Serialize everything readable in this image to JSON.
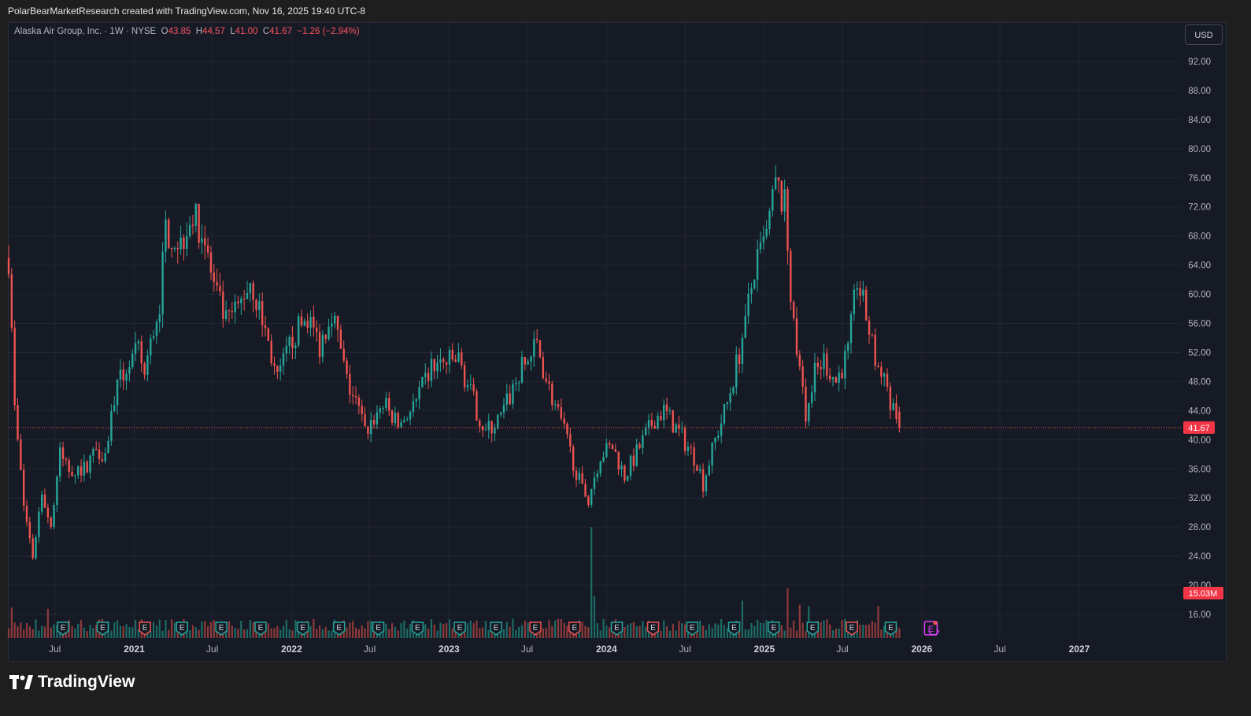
{
  "header": {
    "attribution": "PolarBearMarketResearch created with TradingView.com, Nov 16, 2025 19:40 UTC-8"
  },
  "legend": {
    "symbol": "Alaska Air Group, Inc. · 1W · NYSE",
    "o_label": "O",
    "o_value": "43.85",
    "h_label": "H",
    "h_value": "44.57",
    "l_label": "L",
    "l_value": "41.00",
    "c_label": "C",
    "c_value": "41.67",
    "change": "−1.26 (−2.94%)"
  },
  "currency_button": "USD",
  "price_badge": "41.67",
  "volume_badge": "15.03M",
  "brand": "TradingView",
  "colors": {
    "up": "#26a69a",
    "down": "#ef5350",
    "background": "#161a25",
    "grid": "#232733",
    "earnings_accent": "#e040fb"
  },
  "chart_data": {
    "type": "candlestick",
    "symbol": "ALK",
    "interval": "1W",
    "y_ticks": [
      "16.00",
      "20.00",
      "24.00",
      "28.00",
      "32.00",
      "36.00",
      "40.00",
      "44.00",
      "48.00",
      "52.00",
      "56.00",
      "60.00",
      "64.00",
      "68.00",
      "72.00",
      "76.00",
      "80.00",
      "84.00",
      "88.00",
      "92.00"
    ],
    "ylim": [
      13,
      96
    ],
    "x_ticks": [
      "Jul",
      "2021",
      "Jul",
      "2022",
      "Jul",
      "2023",
      "Jul",
      "2024",
      "Jul",
      "2025",
      "Jul",
      "2026",
      "Jul",
      "2027"
    ],
    "x_range": [
      "2020-03-16",
      "2027-07-01"
    ],
    "last_close": 41.67,
    "last_volume": "15.03M",
    "earnings_markers": [
      {
        "date": "2020-07-20",
        "t": "up"
      },
      {
        "date": "2020-10-20",
        "t": "up"
      },
      {
        "date": "2021-01-26",
        "t": "down"
      },
      {
        "date": "2021-04-22",
        "t": "up"
      },
      {
        "date": "2021-07-22",
        "t": "up"
      },
      {
        "date": "2021-10-21",
        "t": "up"
      },
      {
        "date": "2022-01-27",
        "t": "up"
      },
      {
        "date": "2022-04-21",
        "t": "up"
      },
      {
        "date": "2022-07-21",
        "t": "up"
      },
      {
        "date": "2022-10-20",
        "t": "up"
      },
      {
        "date": "2023-01-26",
        "t": "up"
      },
      {
        "date": "2023-04-20",
        "t": "up"
      },
      {
        "date": "2023-07-20",
        "t": "down"
      },
      {
        "date": "2023-10-19",
        "t": "down"
      },
      {
        "date": "2024-01-25",
        "t": "up"
      },
      {
        "date": "2024-04-18",
        "t": "down"
      },
      {
        "date": "2024-07-18",
        "t": "up"
      },
      {
        "date": "2024-10-23",
        "t": "up"
      },
      {
        "date": "2025-01-23",
        "t": "up"
      },
      {
        "date": "2025-04-23",
        "t": "up"
      },
      {
        "date": "2025-07-23",
        "t": "down"
      },
      {
        "date": "2025-10-21",
        "t": "up"
      }
    ],
    "future_earnings_date": "2026-01-22",
    "anchors": [
      [
        "2020-03-16",
        65
      ],
      [
        "2020-03-30",
        44
      ],
      [
        "2020-04-20",
        31
      ],
      [
        "2020-05-11",
        24
      ],
      [
        "2020-06-01",
        33
      ],
      [
        "2020-06-22",
        28
      ],
      [
        "2020-07-13",
        38
      ],
      [
        "2020-08-03",
        36
      ],
      [
        "2020-09-07",
        36
      ],
      [
        "2020-10-05",
        39
      ],
      [
        "2020-10-26",
        38
      ],
      [
        "2020-11-16",
        46
      ],
      [
        "2020-12-14",
        50
      ],
      [
        "2021-01-11",
        52
      ],
      [
        "2021-01-25",
        49
      ],
      [
        "2021-03-01",
        59
      ],
      [
        "2021-03-15",
        69
      ],
      [
        "2021-04-19",
        67
      ],
      [
        "2021-05-10",
        71
      ],
      [
        "2021-06-07",
        69
      ],
      [
        "2021-07-05",
        61
      ],
      [
        "2021-08-02",
        56
      ],
      [
        "2021-08-30",
        58
      ],
      [
        "2021-09-27",
        62
      ],
      [
        "2021-11-01",
        55
      ],
      [
        "2021-11-29",
        48
      ],
      [
        "2022-01-03",
        54
      ],
      [
        "2022-02-07",
        57
      ],
      [
        "2022-03-07",
        53
      ],
      [
        "2022-04-04",
        58
      ],
      [
        "2022-05-09",
        48
      ],
      [
        "2022-06-06",
        44
      ],
      [
        "2022-06-20",
        41
      ],
      [
        "2022-08-01",
        45
      ],
      [
        "2022-09-05",
        42
      ],
      [
        "2022-10-17",
        45
      ],
      [
        "2022-11-21",
        50
      ],
      [
        "2023-01-23",
        51
      ],
      [
        "2023-03-06",
        44
      ],
      [
        "2023-03-27",
        41
      ],
      [
        "2023-05-01",
        43
      ],
      [
        "2023-06-12",
        49
      ],
      [
        "2023-07-24",
        53
      ],
      [
        "2023-08-21",
        47
      ],
      [
        "2023-09-25",
        41
      ],
      [
        "2023-11-06",
        33
      ],
      [
        "2023-11-20",
        32
      ],
      [
        "2023-12-18",
        38
      ],
      [
        "2024-01-15",
        39
      ],
      [
        "2024-02-12",
        35
      ],
      [
        "2024-03-18",
        39
      ],
      [
        "2024-04-22",
        43
      ],
      [
        "2024-05-13",
        44
      ],
      [
        "2024-06-17",
        41
      ],
      [
        "2024-07-29",
        37
      ],
      [
        "2024-08-12",
        34
      ],
      [
        "2024-09-09",
        40
      ],
      [
        "2024-10-07",
        45
      ],
      [
        "2024-11-04",
        52
      ],
      [
        "2024-12-09",
        63
      ],
      [
        "2025-01-06",
        68
      ],
      [
        "2025-01-27",
        75
      ],
      [
        "2025-02-17",
        72
      ],
      [
        "2025-03-10",
        55
      ],
      [
        "2025-04-07",
        43
      ],
      [
        "2025-04-28",
        49
      ],
      [
        "2025-05-19",
        51
      ],
      [
        "2025-06-16",
        48
      ],
      [
        "2025-07-14",
        52
      ],
      [
        "2025-08-04",
        62
      ],
      [
        "2025-08-25",
        57
      ],
      [
        "2025-09-15",
        51
      ],
      [
        "2025-10-13",
        47
      ],
      [
        "2025-11-10",
        41.67
      ]
    ],
    "volume_spikes": [
      [
        "2020-03-23",
        22
      ],
      [
        "2020-06-15",
        21
      ],
      [
        "2023-11-27",
        80
      ],
      [
        "2023-12-04",
        30
      ],
      [
        "2024-11-11",
        27
      ],
      [
        "2025-02-24",
        36
      ],
      [
        "2025-03-24",
        24
      ],
      [
        "2025-04-14",
        23
      ],
      [
        "2025-09-22",
        23
      ]
    ]
  }
}
